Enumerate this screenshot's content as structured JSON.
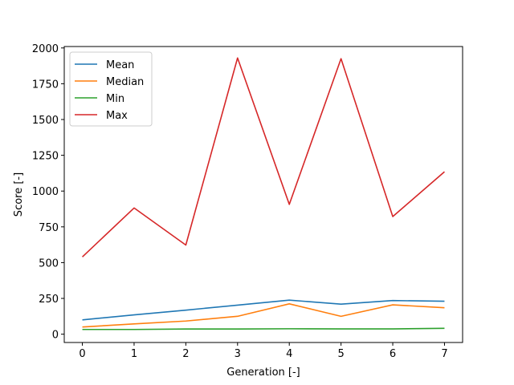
{
  "chart_data": {
    "type": "line",
    "title": "",
    "xlabel": "Generation [-]",
    "ylabel": "Score [-]",
    "x": [
      0,
      1,
      2,
      3,
      4,
      5,
      6,
      7
    ],
    "xlim": [
      -0.35,
      7.35
    ],
    "ylim": [
      -58,
      2010
    ],
    "xticks": [
      0,
      1,
      2,
      3,
      4,
      5,
      6,
      7
    ],
    "yticks": [
      0,
      250,
      500,
      750,
      1000,
      1250,
      1500,
      1750,
      2000
    ],
    "grid": false,
    "legend_position": "top-left",
    "series": [
      {
        "name": "Mean",
        "color": "#1f77b4",
        "values": [
          100,
          135,
          168,
          203,
          238,
          210,
          235,
          230
        ]
      },
      {
        "name": "Median",
        "color": "#ff7f0e",
        "values": [
          50,
          72,
          92,
          125,
          212,
          125,
          205,
          185
        ]
      },
      {
        "name": "Min",
        "color": "#2ca02c",
        "values": [
          33,
          33,
          36,
          36,
          38,
          37,
          37,
          41
        ]
      },
      {
        "name": "Max",
        "color": "#d62728",
        "values": [
          540,
          882,
          623,
          1930,
          907,
          1925,
          822,
          1135
        ]
      }
    ]
  }
}
